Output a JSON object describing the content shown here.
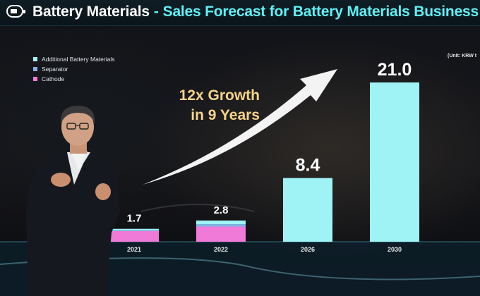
{
  "slide": {
    "section": "Battery Materials",
    "separator": "-",
    "title": "Sales Forecast for Battery Materials Business",
    "unit_note": "(Unit: KRW t",
    "headline_line1": "12x Growth",
    "headline_line2": "in 9 Years",
    "icon": "battery-icon",
    "accent_color": "#5ef1f5",
    "headline_color": "#f5d48a"
  },
  "legend": [
    {
      "label": "Additional Battery Materials",
      "color": "#9ff3f5"
    },
    {
      "label": "Separator",
      "color": "#7fb4e8"
    },
    {
      "label": "Cathode",
      "color": "#f07ad8"
    }
  ],
  "chart_data": {
    "type": "bar",
    "stacked": true,
    "categories": [
      "2021",
      "2022",
      "2026",
      "2030"
    ],
    "totals": [
      1.7,
      2.8,
      8.4,
      21.0
    ],
    "total_labels": [
      "1.7",
      "2.8",
      "8.4",
      "21.0"
    ],
    "series": [
      {
        "name": "Cathode",
        "color": "#f07ad8",
        "values": [
          1.4,
          2.0,
          null,
          null
        ]
      },
      {
        "name": "Separator",
        "color": "#7fb4e8",
        "values": [
          0.1,
          0.3,
          null,
          null
        ]
      },
      {
        "name": "Additional Battery Materials",
        "color": "#9ff3f5",
        "values": [
          0.2,
          0.5,
          8.4,
          21.0
        ]
      }
    ],
    "ylim": [
      0,
      21
    ],
    "xlabel": "",
    "ylabel": "",
    "legend_position": "top-left",
    "grid": false,
    "annotation": "12x Growth in 9 Years"
  }
}
